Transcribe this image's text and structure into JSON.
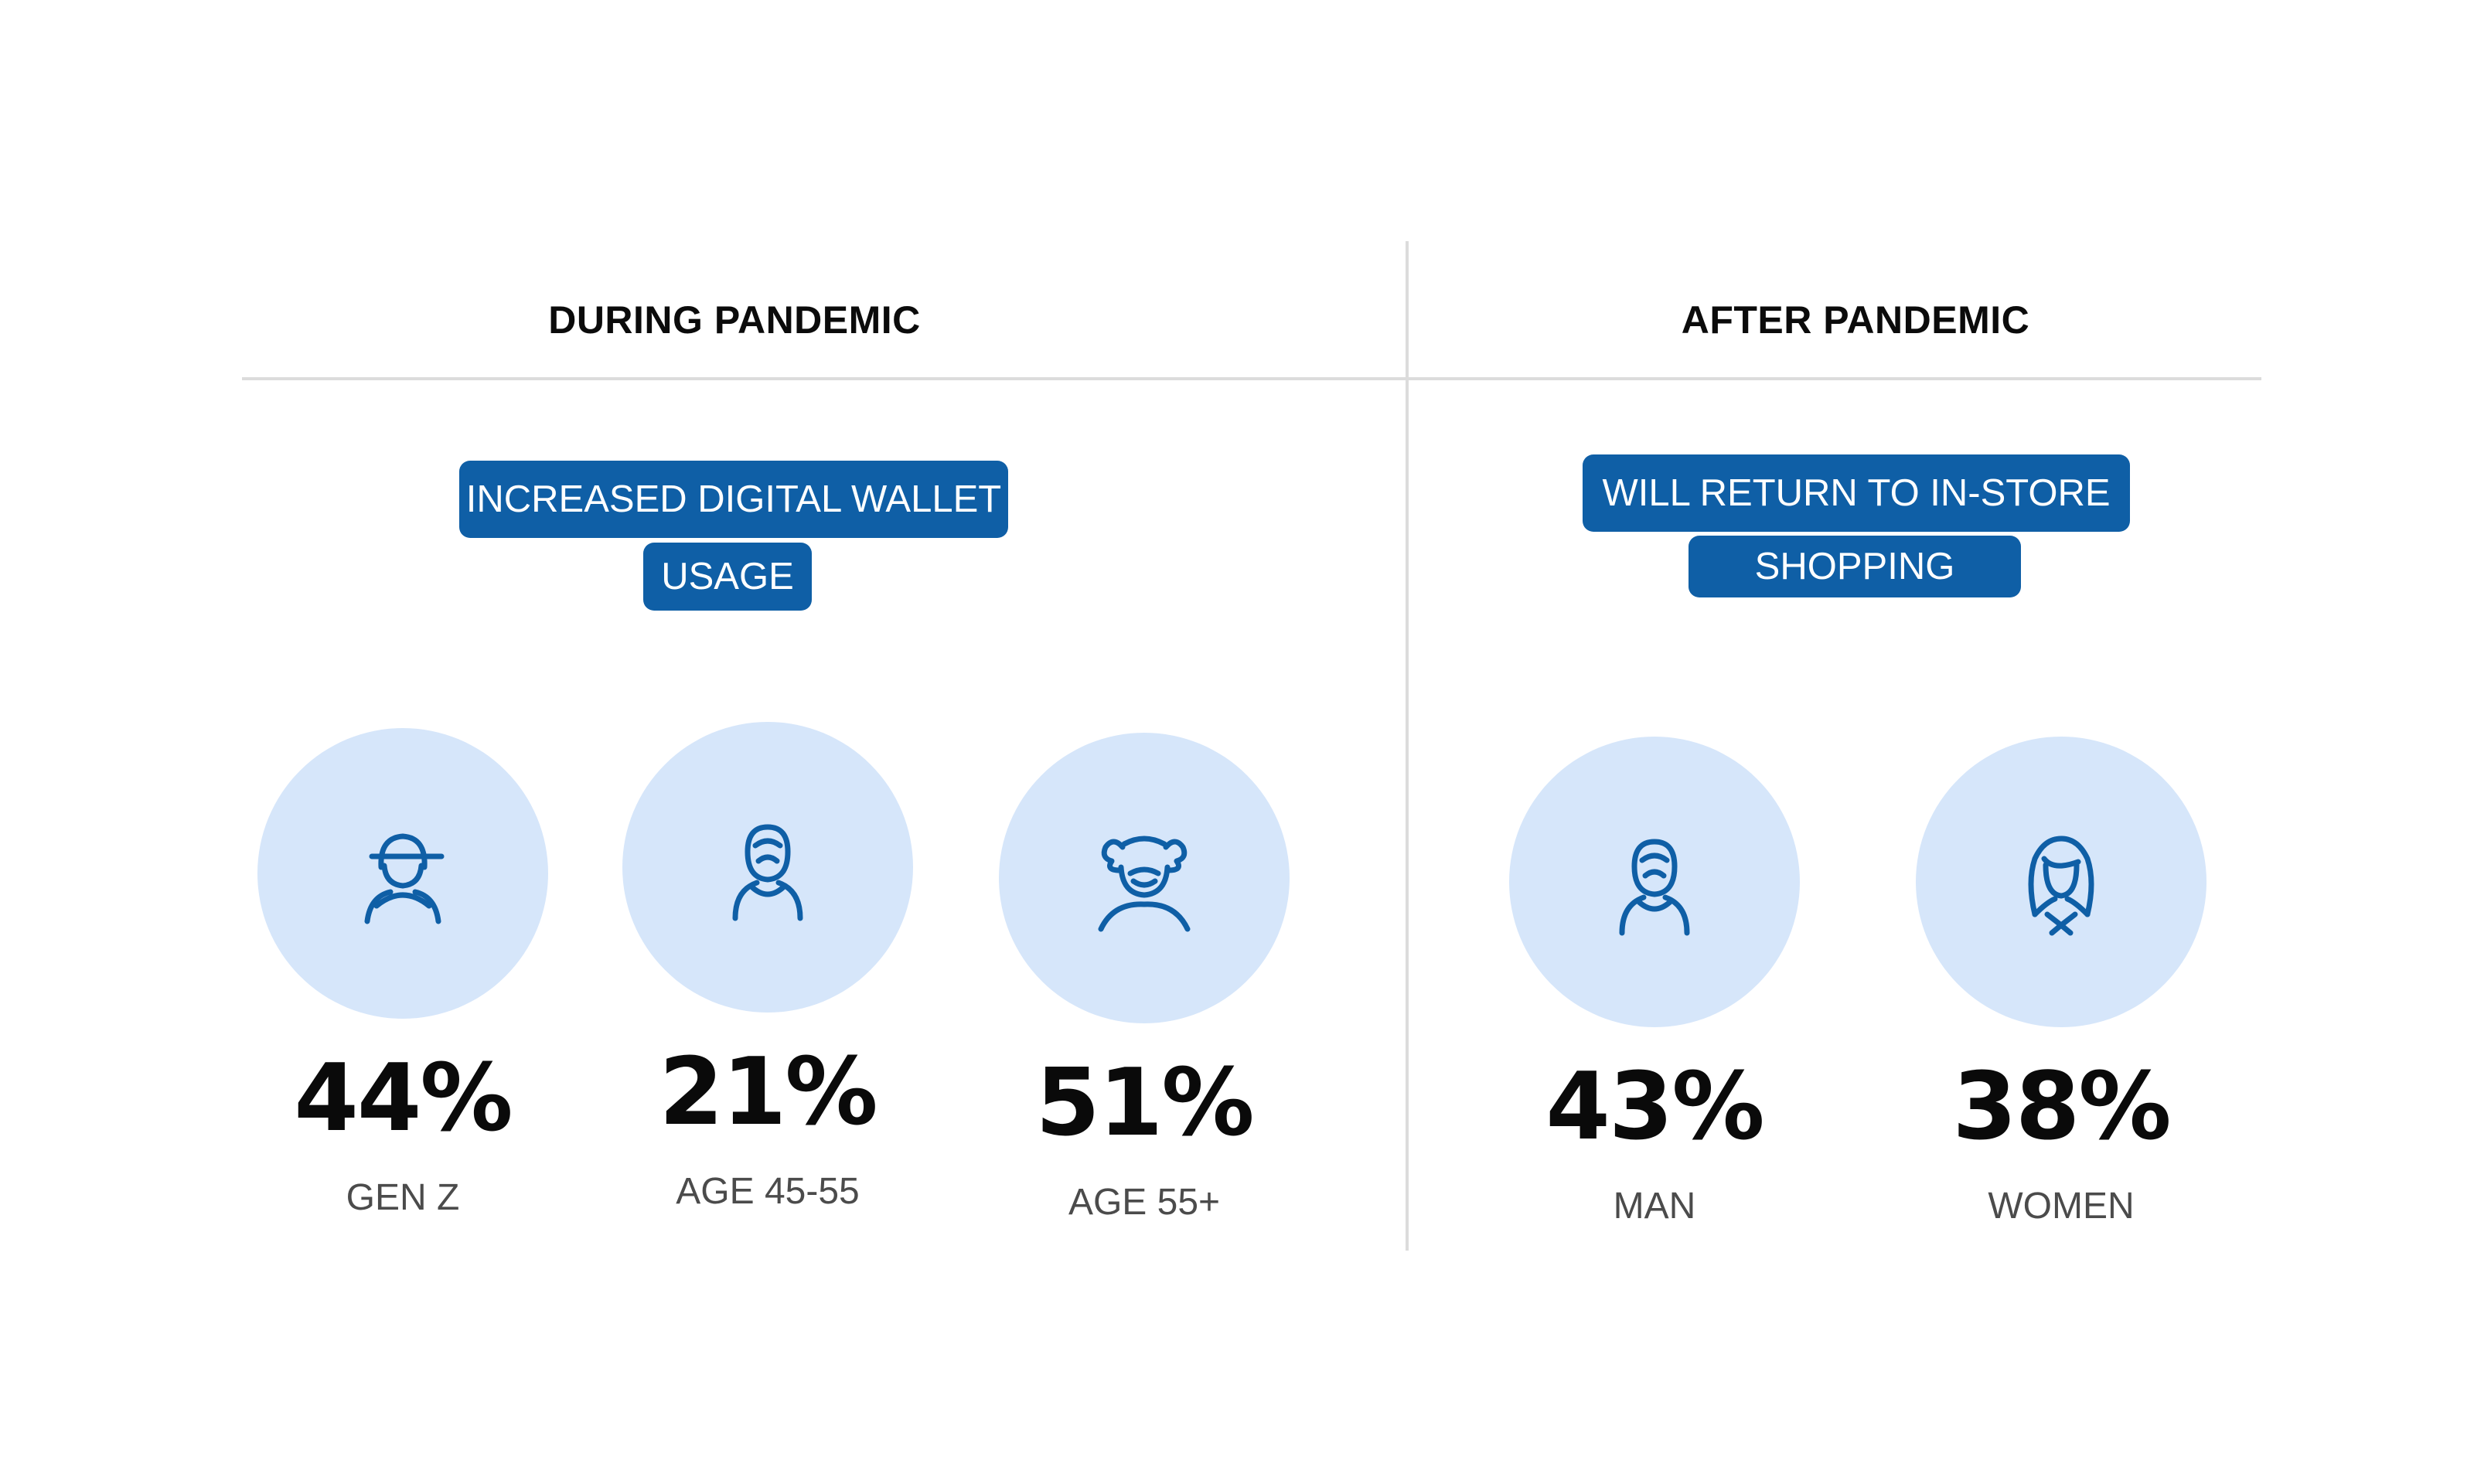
{
  "during": {
    "heading": "DURING PANDEMIC",
    "pill_line1": "INCREASED DIGITAL WALLET",
    "pill_line2": "USAGE",
    "stats": [
      {
        "value": "44%",
        "label": "GEN Z",
        "icon": "gen-z-person-icon"
      },
      {
        "value": "21%",
        "label": "AGE 45-55",
        "icon": "middle-aged-person-icon"
      },
      {
        "value": "51%",
        "label": "AGE 55+",
        "icon": "elderly-person-icon"
      }
    ]
  },
  "after": {
    "heading": "AFTER PANDEMIC",
    "pill_line1": "WILL RETURN TO IN-STORE",
    "pill_line2": "SHOPPING",
    "stats": [
      {
        "value": "43%",
        "label": "MAN",
        "icon": "man-icon"
      },
      {
        "value": "38%",
        "label": "WOMEN",
        "icon": "woman-icon"
      }
    ]
  },
  "colors": {
    "accent": "#0f5fa6",
    "circle_fill": "#d6e6fa",
    "divider": "#dcdcdc",
    "value_text": "#0a0a0a",
    "label_text": "#4b4b4b"
  }
}
